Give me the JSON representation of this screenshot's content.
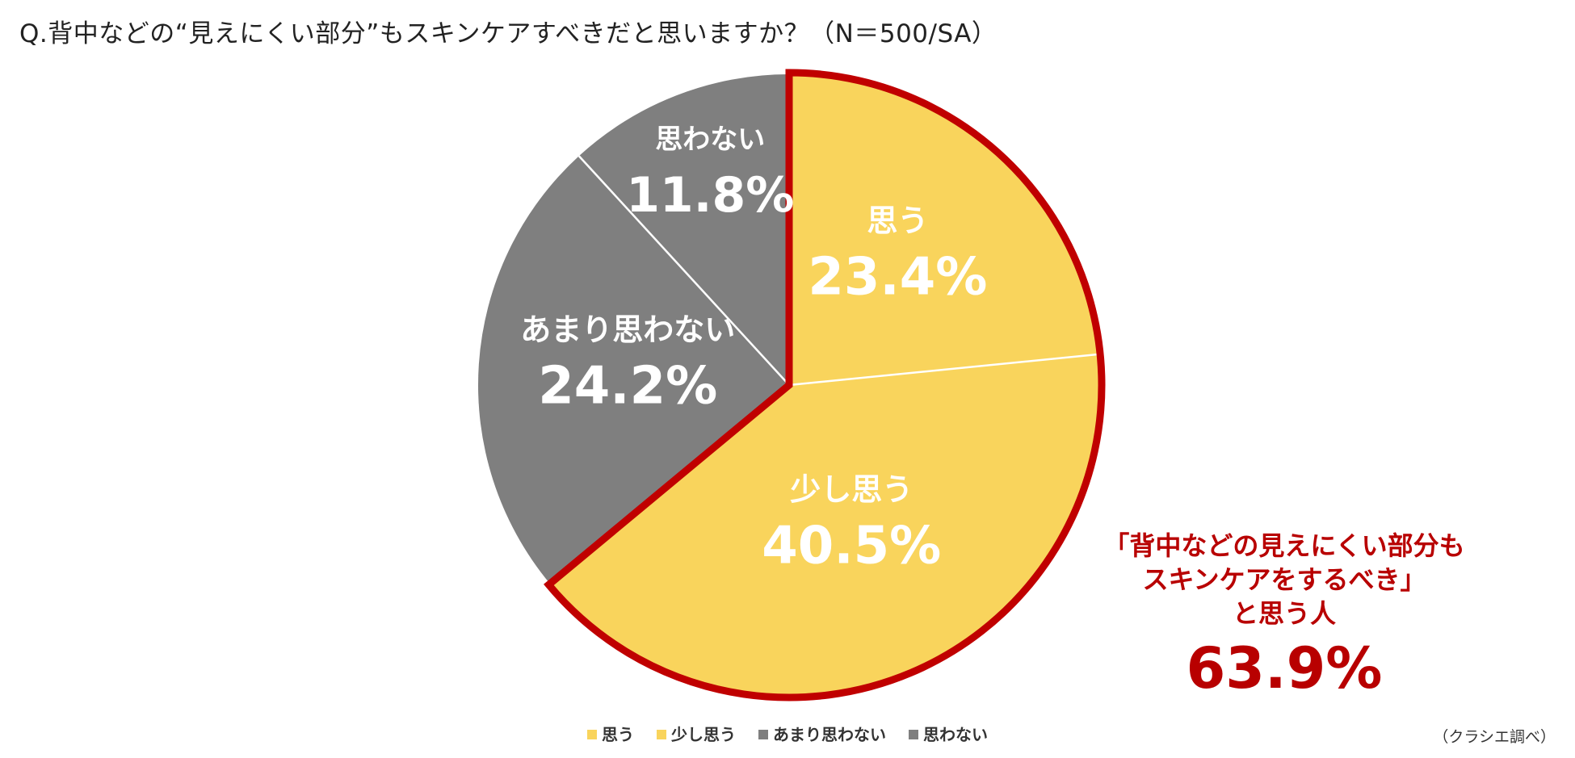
{
  "chart_data": {
    "type": "pie",
    "title": "Q.背中などの“見えにくい部分”もスキンケアすべきだと思いますか？（N＝500/SA）",
    "slices": [
      {
        "label": "思う",
        "value": 23.4,
        "display": "23.4%",
        "color": "#f9d45c"
      },
      {
        "label": "少し思う",
        "value": 40.5,
        "display": "40.5%",
        "color": "#f9d45c"
      },
      {
        "label": "あまり思わない",
        "value": 24.2,
        "display": "24.2%",
        "color": "#7f7f7f"
      },
      {
        "label": "思わない",
        "value": 11.8,
        "display": "11.8%",
        "color": "#7f7f7f"
      }
    ],
    "start_angle_deg": 0,
    "direction": "clockwise",
    "legend_position": "bottom-center",
    "highlight": {
      "slices": [
        "思う",
        "少し思う"
      ],
      "outline_color": "#c00000"
    }
  },
  "callout": {
    "line1": "「背中などの見えにくい部分も",
    "line2": "スキンケアをするべき」",
    "line3": "と思う人",
    "value": "63.9%"
  },
  "source_note": "（クラシエ調べ）",
  "colors": {
    "agree": "#f9d45c",
    "disagree": "#7f7f7f",
    "highlight": "#c00000",
    "callout_text": "#b80000"
  }
}
